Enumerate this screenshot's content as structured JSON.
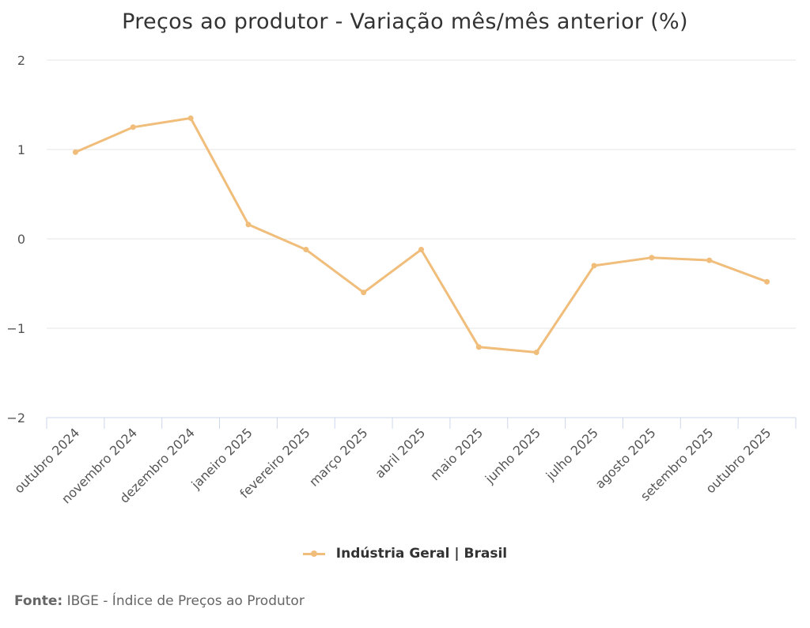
{
  "chart_data": {
    "type": "line",
    "title": "Preços ao produtor - Variação mês/mês anterior (%)",
    "categories": [
      "outubro 2024",
      "novembro 2024",
      "dezembro 2024",
      "janeiro 2025",
      "fevereiro 2025",
      "março 2025",
      "abril 2025",
      "maio 2025",
      "junho 2025",
      "julho 2025",
      "agosto 2025",
      "setembro 2025",
      "outubro 2025"
    ],
    "series": [
      {
        "name": "Indústria Geral | Brasil",
        "values": [
          0.97,
          1.25,
          1.35,
          0.16,
          -0.12,
          -0.6,
          -0.12,
          -1.21,
          -1.27,
          -0.3,
          -0.21,
          -0.24,
          -0.48
        ]
      }
    ],
    "y_ticks": [
      "2",
      "1",
      "0",
      "−1",
      "−2"
    ],
    "ylim": [
      -2,
      2
    ],
    "grid": true,
    "legend_position": "bottom-center",
    "color": "#f0bd7a"
  },
  "source": {
    "label": "Fonte:",
    "text": "IBGE - Índice de Preços ao Produtor"
  }
}
